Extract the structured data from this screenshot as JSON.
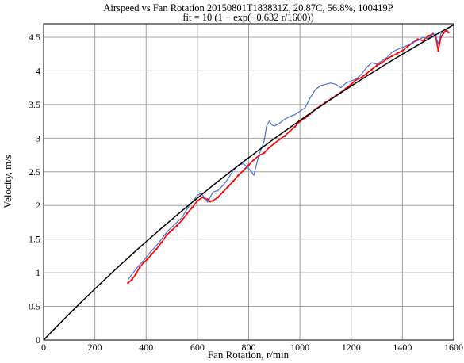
{
  "colors": {
    "grid": "#a0a0a0",
    "fit": "#000000",
    "series_red": "#ff0000",
    "series_blue": "#4a6fd6",
    "background": "#ffffff"
  },
  "chart_data": {
    "type": "line",
    "title": "Airspeed vs Fan Rotation 20150801T183831Z, 20.87C, 56.8%, 100419P",
    "subtitle": "fit = 10 (1 − exp(−0.632 r/1600))",
    "xlabel": "Fan Rotation, r/min",
    "ylabel": "Velocity, m/s",
    "xlim": [
      0,
      1600
    ],
    "ylim": [
      0,
      4.7
    ],
    "xticks": [
      0,
      200,
      400,
      600,
      800,
      1000,
      1200,
      1400,
      1600
    ],
    "xtick_labels": [
      "0",
      "200",
      "400",
      "600",
      "800",
      "1000",
      "1200",
      "1400",
      "1600"
    ],
    "yticks": [
      0,
      0.5,
      1,
      1.5,
      2,
      2.5,
      3,
      3.5,
      4,
      4.5
    ],
    "ytick_labels": [
      "0",
      "0.5",
      "1",
      "1.5",
      "2",
      "2.5",
      "3",
      "3.5",
      "4",
      "4.5"
    ],
    "grid": true,
    "fit": {
      "a": 10,
      "k": 0.632,
      "scale": 1600,
      "x_range": [
        0,
        1600
      ]
    },
    "series": [
      {
        "color": "red",
        "x": [
          330,
          345,
          360,
          375,
          390,
          405,
          420,
          440,
          460,
          480,
          500,
          520,
          540,
          560,
          580,
          600,
          620,
          630,
          640,
          650,
          660,
          680,
          700,
          720,
          740,
          760,
          780,
          800,
          820,
          840,
          860,
          880,
          900,
          920,
          940,
          960,
          980,
          1000,
          1020,
          1040,
          1060,
          1080,
          1100,
          1120,
          1140,
          1160,
          1180,
          1200,
          1220,
          1240,
          1260,
          1280,
          1300,
          1320,
          1340,
          1360,
          1380,
          1400,
          1420,
          1440,
          1460,
          1480,
          1500,
          1520,
          1530,
          1540,
          1550,
          1560,
          1570,
          1580
        ],
        "y": [
          0.85,
          0.9,
          0.98,
          1.08,
          1.15,
          1.2,
          1.27,
          1.35,
          1.45,
          1.56,
          1.63,
          1.7,
          1.78,
          1.88,
          1.97,
          2.07,
          2.12,
          2.1,
          2.09,
          2.06,
          2.07,
          2.12,
          2.2,
          2.28,
          2.36,
          2.45,
          2.52,
          2.6,
          2.68,
          2.74,
          2.78,
          2.86,
          2.92,
          2.98,
          3.03,
          3.1,
          3.17,
          3.25,
          3.3,
          3.36,
          3.43,
          3.48,
          3.53,
          3.58,
          3.63,
          3.68,
          3.74,
          3.8,
          3.87,
          3.9,
          3.96,
          4.02,
          4.08,
          4.12,
          4.18,
          4.22,
          4.26,
          4.3,
          4.36,
          4.42,
          4.47,
          4.45,
          4.52,
          4.55,
          4.5,
          4.3,
          4.5,
          4.56,
          4.6,
          4.57
        ]
      },
      {
        "color": "blue",
        "x": [
          330,
          345,
          360,
          375,
          390,
          405,
          420,
          440,
          460,
          480,
          500,
          520,
          540,
          560,
          580,
          600,
          615,
          630,
          640,
          650,
          660,
          680,
          700,
          720,
          740,
          760,
          780,
          800,
          820,
          840,
          860,
          870,
          880,
          890,
          900,
          920,
          940,
          960,
          980,
          1000,
          1020,
          1040,
          1060,
          1080,
          1100,
          1120,
          1140,
          1160,
          1180,
          1200,
          1220,
          1240,
          1260,
          1280,
          1300,
          1320,
          1340,
          1360,
          1380,
          1400,
          1420,
          1440,
          1460,
          1480,
          1500,
          1520,
          1530,
          1540,
          1550,
          1560,
          1570,
          1580
        ],
        "y": [
          0.9,
          0.98,
          1.05,
          1.12,
          1.18,
          1.25,
          1.32,
          1.4,
          1.5,
          1.6,
          1.68,
          1.75,
          1.82,
          1.95,
          2.05,
          2.15,
          2.18,
          2.1,
          2.05,
          2.12,
          2.2,
          2.22,
          2.3,
          2.4,
          2.52,
          2.6,
          2.62,
          2.55,
          2.45,
          2.75,
          2.95,
          3.18,
          3.25,
          3.2,
          3.18,
          3.22,
          3.28,
          3.32,
          3.35,
          3.4,
          3.45,
          3.6,
          3.72,
          3.78,
          3.8,
          3.82,
          3.8,
          3.75,
          3.82,
          3.85,
          3.88,
          3.95,
          4.05,
          4.12,
          4.1,
          4.15,
          4.2,
          4.28,
          4.32,
          4.35,
          4.38,
          4.42,
          4.45,
          4.5,
          4.48,
          4.55,
          4.52,
          4.4,
          4.55,
          4.6,
          4.62,
          4.58
        ]
      }
    ]
  }
}
